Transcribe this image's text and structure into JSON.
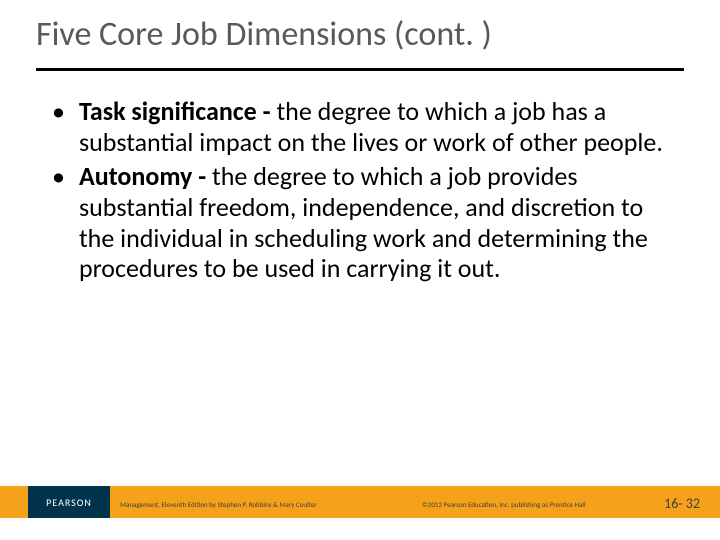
{
  "title": "Five Core Job Dimensions (cont. )",
  "bullets": [
    {
      "term": "Task significance - ",
      "def": "the degree to which a job has a substantial impact on the lives or work of other people."
    },
    {
      "term": "Autonomy - ",
      "def": "the degree to which a job provides substantial freedom, independence, and discretion to the individual in scheduling work and determining the procedures to be used in carrying it out."
    }
  ],
  "footer": {
    "publisher": "PEARSON",
    "left": "Management, Eleventh Edition by Stephen P. Robbins & Mary Coulter",
    "right": "©2012 Pearson Education, Inc. publishing as Prentice Hall",
    "page": "16- 32"
  },
  "colors": {
    "title": "#595959",
    "rule": "#000000",
    "footer_bar": "#f6a11a",
    "logo_bg": "#00334e",
    "text": "#000000"
  }
}
